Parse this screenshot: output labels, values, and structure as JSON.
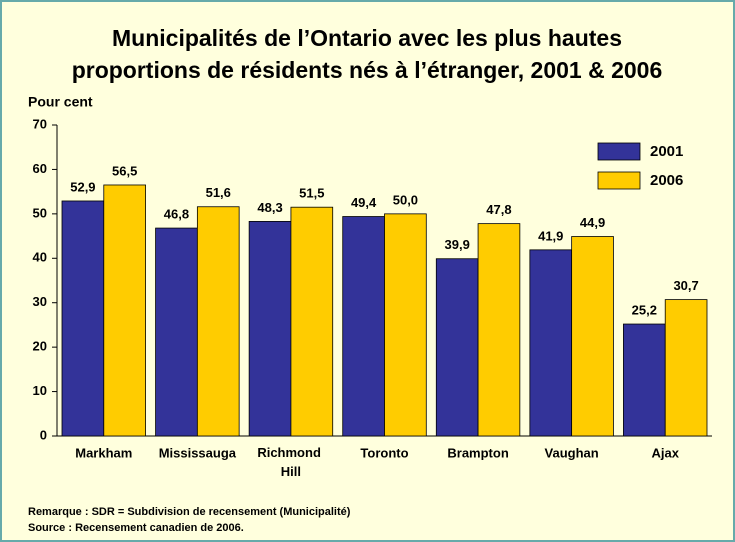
{
  "chart_data": {
    "type": "bar",
    "title": "Municipalités de l’Ontario avec les plus hautes",
    "subtitle": "proportions de résidents nés à l’étranger, 2001 & 2006",
    "y_label": "Pour cent",
    "categories": [
      "Markham",
      "Mississauga",
      "Richmond Hill",
      "Toronto",
      "Brampton",
      "Vaughan",
      "Ajax"
    ],
    "series": [
      {
        "name": "2001",
        "color": "#333399",
        "values": [
          52.9,
          46.8,
          48.3,
          49.4,
          39.9,
          41.9,
          25.2
        ],
        "value_labels": [
          "52,9",
          "46,8",
          "48,3",
          "49,4",
          "39,9",
          "41,9",
          "25,2"
        ]
      },
      {
        "name": "2006",
        "color": "#ffcc00",
        "values": [
          56.5,
          51.6,
          51.5,
          50.0,
          47.8,
          44.9,
          30.7
        ],
        "value_labels": [
          "56,5",
          "51,6",
          "51,5",
          "50,0",
          "47,8",
          "44,9",
          "30,7"
        ]
      }
    ],
    "ylim": [
      0,
      70
    ],
    "yticks": [
      0,
      10,
      20,
      30,
      40,
      50,
      60,
      70
    ],
    "grid": false,
    "legend": "upper right",
    "notes": [
      "Remarque : SDR = Subdivision de recensement (Municipalité)",
      "Source : Recensement canadien de 2006."
    ]
  }
}
